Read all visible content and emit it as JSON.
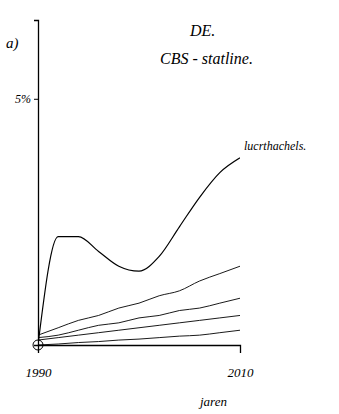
{
  "chart_data": {
    "type": "line",
    "title": "DE.",
    "subtitle": "CBS - statline.",
    "annotations": [
      "a)"
    ],
    "x_label": "jaren",
    "x": [
      1990,
      1992,
      1994,
      1996,
      1998,
      2000,
      2002,
      2004,
      2006,
      2008,
      2010
    ],
    "xlim": [
      1990,
      2010
    ],
    "xticks": [
      1990,
      2010
    ],
    "ylim": [
      0,
      6.6
    ],
    "yticks": [
      {
        "value": 5,
        "label": "5%"
      }
    ],
    "series": [
      {
        "name": "lucrthachels.",
        "color": "#000000",
        "values": [
          0,
          2.2,
          2.2,
          1.9,
          1.6,
          1.5,
          1.8,
          2.4,
          3.0,
          3.5,
          3.8
        ]
      },
      {
        "color": "#000000",
        "values": [
          0.2,
          0.35,
          0.5,
          0.6,
          0.75,
          0.85,
          1.0,
          1.1,
          1.3,
          1.45,
          1.6
        ]
      },
      {
        "color": "#000000",
        "values": [
          0.15,
          0.2,
          0.3,
          0.4,
          0.45,
          0.55,
          0.6,
          0.7,
          0.75,
          0.85,
          0.95
        ]
      },
      {
        "color": "#000000",
        "values": [
          0.1,
          0.15,
          0.2,
          0.25,
          0.3,
          0.35,
          0.4,
          0.45,
          0.5,
          0.55,
          0.6
        ]
      },
      {
        "color": "#000000",
        "values": [
          0,
          0.02,
          0.05,
          0.07,
          0.1,
          0.12,
          0.15,
          0.18,
          0.2,
          0.25,
          0.3
        ]
      }
    ]
  }
}
